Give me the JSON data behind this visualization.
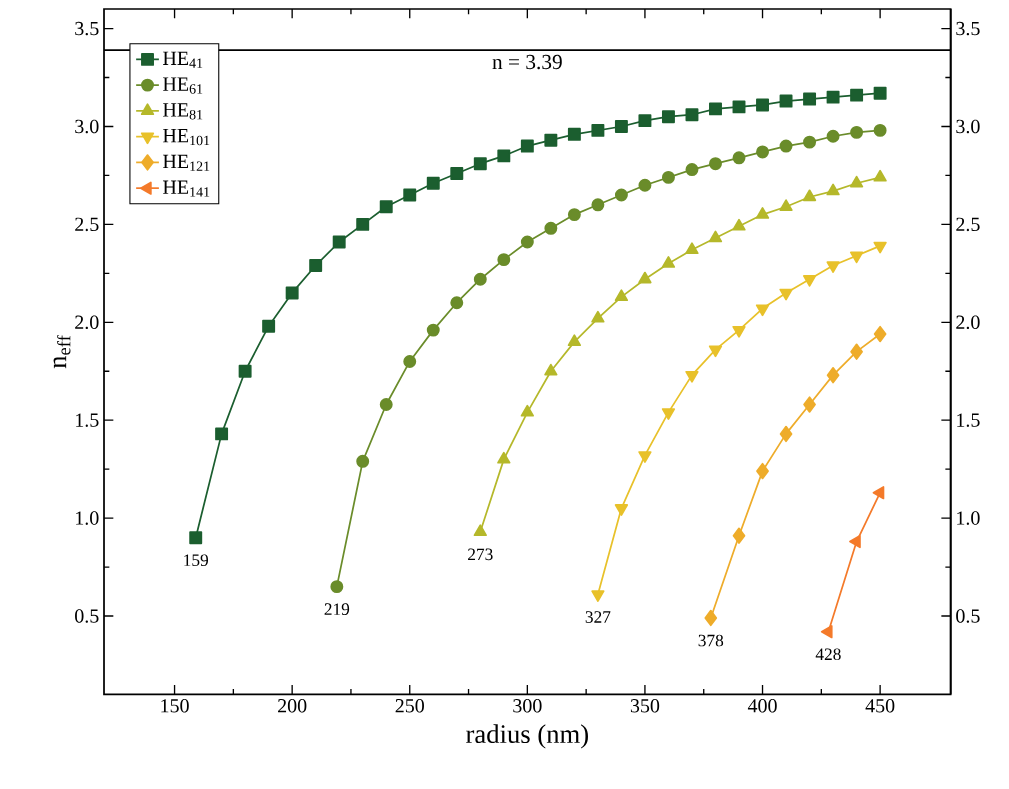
{
  "chart_data": {
    "type": "line",
    "xlabel": "radius (nm)",
    "ylabel": "n$_{eff}$",
    "xlim": [
      120,
      480
    ],
    "xticks": [
      150,
      200,
      250,
      300,
      350,
      400,
      450
    ],
    "ylim": [
      0.1,
      3.6
    ],
    "yticks": [
      0.5,
      {
        "value": 1.0,
        "label": "1.0"
      },
      1.5,
      {
        "value": 2.0,
        "label": "2.0"
      },
      2.5,
      {
        "value": 3.0,
        "label": "3.0"
      },
      3.5
    ],
    "y2lim": [
      0.1,
      3.6
    ],
    "y2ticks": [
      0.5,
      {
        "value": 1.0,
        "label": "1.0"
      },
      1.5,
      {
        "value": 2.0,
        "label": "2.0"
      },
      2.5,
      {
        "value": 3.0,
        "label": "3.0"
      },
      3.5
    ],
    "legend": "top left",
    "grid": false,
    "line_style": "solid",
    "ref_lines": [
      {
        "axis": "y",
        "value": 3.39,
        "label": "n = 3.39",
        "color": "#000000"
      }
    ],
    "annotations": [
      {
        "text": "159",
        "x": 159,
        "y": 0.9
      },
      {
        "text": "219",
        "x": 219,
        "y": 0.65
      },
      {
        "text": "273",
        "x": 280,
        "y": 0.93
      },
      {
        "text": "327",
        "x": 330,
        "y": 0.61
      },
      {
        "text": "378",
        "x": 378,
        "y": 0.49
      },
      {
        "text": "428",
        "x": 428,
        "y": 0.42
      }
    ],
    "series": [
      {
        "name": "HE$_{41}$",
        "color": "#1b5e2f",
        "marker": "square",
        "x": [
          159,
          170,
          180,
          190,
          200,
          210,
          220,
          230,
          240,
          250,
          260,
          270,
          280,
          290,
          300,
          310,
          320,
          330,
          340,
          350,
          360,
          370,
          380,
          390,
          400,
          410,
          420,
          430,
          440,
          450
        ],
        "values": [
          0.9,
          1.43,
          1.75,
          1.98,
          2.15,
          2.29,
          2.41,
          2.5,
          2.59,
          2.65,
          2.71,
          2.76,
          2.81,
          2.85,
          2.9,
          2.93,
          2.96,
          2.98,
          3.0,
          3.03,
          3.05,
          3.06,
          3.09,
          3.1,
          3.11,
          3.13,
          3.14,
          3.15,
          3.16,
          3.17
        ]
      },
      {
        "name": "HE$_{61}$",
        "color": "#6a8c2a",
        "marker": "circle",
        "x": [
          219,
          230,
          240,
          250,
          260,
          270,
          280,
          290,
          300,
          310,
          320,
          330,
          340,
          350,
          360,
          370,
          380,
          390,
          400,
          410,
          420,
          430,
          440,
          450
        ],
        "values": [
          0.65,
          1.29,
          1.58,
          1.8,
          1.96,
          2.1,
          2.22,
          2.32,
          2.41,
          2.48,
          2.55,
          2.6,
          2.65,
          2.7,
          2.74,
          2.78,
          2.81,
          2.84,
          2.87,
          2.9,
          2.92,
          2.95,
          2.97,
          2.98
        ]
      },
      {
        "name": "HE$_{81}$",
        "color": "#b5b82a",
        "marker": "triangle",
        "x": [
          280,
          290,
          300,
          310,
          320,
          330,
          340,
          350,
          360,
          370,
          380,
          390,
          400,
          410,
          420,
          430,
          440,
          450
        ],
        "values": [
          0.93,
          1.3,
          1.54,
          1.75,
          1.9,
          2.02,
          2.13,
          2.22,
          2.3,
          2.37,
          2.43,
          2.49,
          2.55,
          2.59,
          2.64,
          2.67,
          2.71,
          2.74
        ]
      },
      {
        "name": "HE$_{101}$",
        "color": "#e8c12a",
        "marker": "triangle-down",
        "x": [
          330,
          340,
          350,
          360,
          370,
          380,
          390,
          400,
          410,
          420,
          430,
          440,
          450
        ],
        "values": [
          0.61,
          1.05,
          1.32,
          1.54,
          1.73,
          1.86,
          1.96,
          2.07,
          2.15,
          2.22,
          2.29,
          2.34,
          2.39
        ]
      },
      {
        "name": "HE$_{121}$",
        "color": "#eeac2a",
        "marker": "diamond",
        "x": [
          378,
          390,
          400,
          410,
          420,
          430,
          440,
          450
        ],
        "values": [
          0.49,
          0.91,
          1.24,
          1.43,
          1.58,
          1.73,
          1.85,
          1.94
        ]
      },
      {
        "name": "HE$_{141}$",
        "color": "#f47a2a",
        "marker": "triangle-left",
        "x": [
          428,
          440,
          450
        ],
        "values": [
          0.42,
          0.88,
          1.13
        ]
      }
    ]
  }
}
